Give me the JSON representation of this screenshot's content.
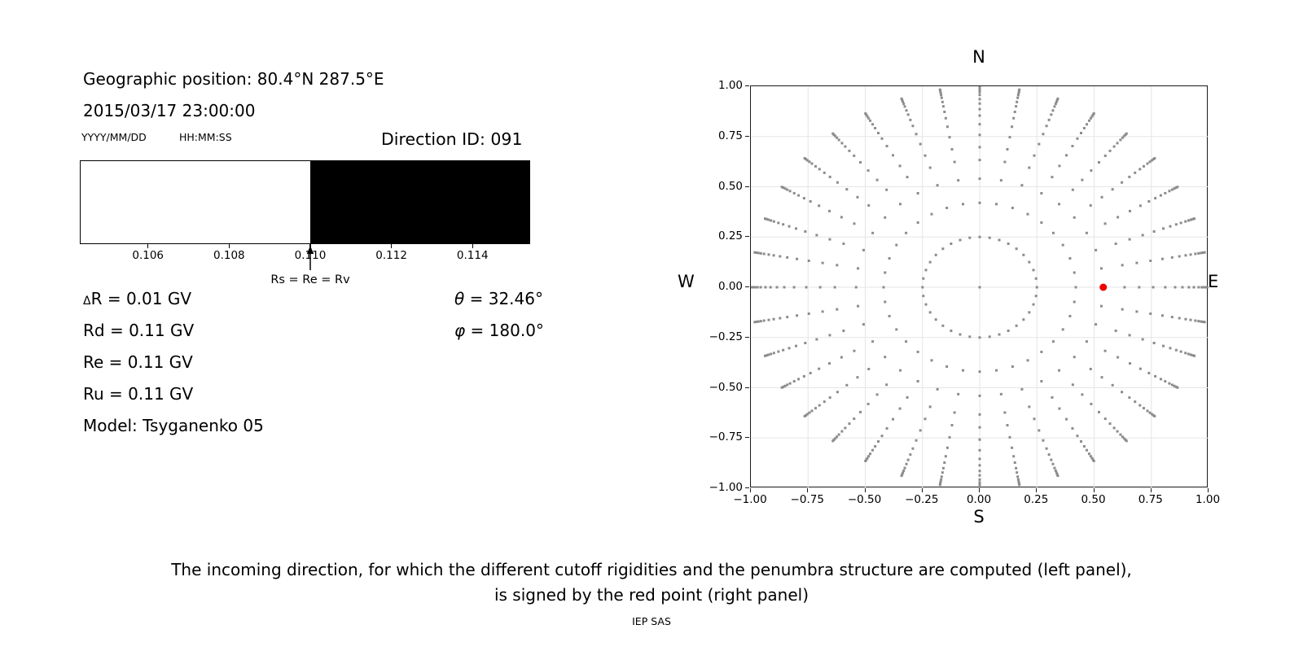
{
  "left_panel": {
    "geo_position": "Geographic position: 80.4°N 287.5°E",
    "datetime": "2015/03/17 23:00:00",
    "date_format_hint": "YYYY/MM/DD",
    "time_format_hint": "HH:MM:SS",
    "direction_id": "Direction ID: 091",
    "arrow_label": "Rs = Re = Rv",
    "delta_r_symbol": "Δ",
    "delta_r_text": "R = 0.01 GV",
    "rd": "Rd = 0.11 GV",
    "re": "Re = 0.11 GV",
    "ru": "Ru = 0.11 GV",
    "model": "Model: Tsyganenko 05",
    "theta_symbol": "θ",
    "theta_text": " = 32.46°",
    "phi_symbol": "φ",
    "phi_text": " = 180.0°"
  },
  "caption": {
    "line1": "The incoming direction, for which the different cutoff rigidities and the penumbra structure are computed (left panel),",
    "line2": "is signed by the red point (right panel)",
    "credit": "IEP SAS"
  },
  "chart_data": [
    {
      "type": "bar",
      "description": "penumbra structure band, white below transition and black above",
      "xlim": [
        0.10432,
        0.11542
      ],
      "transition_x": 0.11,
      "segments": [
        {
          "from": 0.10432,
          "to": 0.11,
          "color": "#ffffff"
        },
        {
          "from": 0.11,
          "to": 0.11542,
          "color": "#000000"
        }
      ],
      "tick_values": [
        0.106,
        0.108,
        0.11,
        0.112,
        0.114
      ],
      "tick_labels": [
        "0.106",
        "0.108",
        "0.110",
        "0.112",
        "0.114"
      ],
      "annotation": {
        "text": "Rs = Re = Rv",
        "x": 0.11
      }
    },
    {
      "type": "scatter",
      "description": "grid of incoming directions; red point marks selected direction",
      "xlim": [
        -1.0,
        1.0
      ],
      "ylim": [
        -1.0,
        1.0
      ],
      "grid": true,
      "x_tick_labels": [
        "−1.00",
        "−0.75",
        "−0.50",
        "−0.25",
        "0.00",
        "0.25",
        "0.50",
        "0.75",
        "1.00"
      ],
      "y_tick_labels": [
        "1.00",
        "0.75",
        "0.50",
        "0.25",
        "0.00",
        "−0.25",
        "−0.50",
        "−0.75",
        "−1.00"
      ],
      "direction_labels": {
        "top": "N",
        "bottom": "S",
        "left": "W",
        "right": "E"
      },
      "grid_points": {
        "azimuth_count": 36,
        "azimuth_step_deg": 10,
        "radii": [
          0.25,
          0.42,
          0.54,
          0.633,
          0.697,
          0.758,
          0.811,
          0.854,
          0.886,
          0.914,
          0.936,
          0.957,
          0.971,
          0.982,
          0.991,
          0.998
        ],
        "center_point": true,
        "marker": "square",
        "marker_size_px": 3,
        "color": "#8c8c8c"
      },
      "red_point": {
        "x": 0.54,
        "y": 0.0,
        "radius_px": 4.5,
        "color": "#ef0000"
      },
      "grid_color": "#e5e5e5"
    }
  ]
}
